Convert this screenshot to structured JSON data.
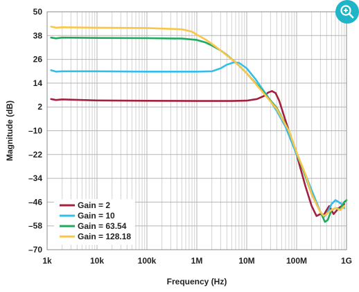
{
  "chart_data": {
    "type": "line",
    "xlabel": "Frequency (Hz)",
    "ylabel": "Magnitude (dB)",
    "xscale": "log",
    "xlim": [
      1000,
      1000000000
    ],
    "ylim": [
      -70,
      50
    ],
    "x_ticks": [
      {
        "value": 1000,
        "label": "1k"
      },
      {
        "value": 10000,
        "label": "10k"
      },
      {
        "value": 100000,
        "label": "100k"
      },
      {
        "value": 1000000,
        "label": "1M"
      },
      {
        "value": 10000000,
        "label": "10M"
      },
      {
        "value": 100000000,
        "label": "100M"
      },
      {
        "value": 1000000000,
        "label": "1G"
      }
    ],
    "y_ticks": [
      {
        "value": 50,
        "label": "50"
      },
      {
        "value": 38,
        "label": "38"
      },
      {
        "value": 26,
        "label": "26"
      },
      {
        "value": 14,
        "label": "14"
      },
      {
        "value": 2,
        "label": "2"
      },
      {
        "value": -10,
        "label": "–10"
      },
      {
        "value": -22,
        "label": "–22"
      },
      {
        "value": -34,
        "label": "–34"
      },
      {
        "value": -46,
        "label": "–46"
      },
      {
        "value": -58,
        "label": "–58"
      },
      {
        "value": -70,
        "label": "–70"
      }
    ],
    "grid": true,
    "legend_position": "bottom-left",
    "series": [
      {
        "name": "Gain = 2",
        "color": "#a3203f",
        "points": [
          [
            1200,
            6
          ],
          [
            1500,
            5.5
          ],
          [
            2000,
            5.8
          ],
          [
            5000,
            5.5
          ],
          [
            10000,
            5.3
          ],
          [
            100000,
            5.1
          ],
          [
            1000000,
            5
          ],
          [
            5000000,
            5
          ],
          [
            10000000,
            5.2
          ],
          [
            16000000,
            6
          ],
          [
            22000000,
            7.5
          ],
          [
            27000000,
            9.3
          ],
          [
            32000000,
            10
          ],
          [
            38000000,
            9
          ],
          [
            45000000,
            5
          ],
          [
            55000000,
            -2
          ],
          [
            70000000,
            -10
          ],
          [
            100000000,
            -22
          ],
          [
            150000000,
            -38
          ],
          [
            200000000,
            -48
          ],
          [
            250000000,
            -53
          ],
          [
            300000000,
            -52
          ],
          [
            350000000,
            -52.5
          ],
          [
            400000000,
            -50
          ],
          [
            450000000,
            -48
          ],
          [
            550000000,
            -52
          ],
          [
            700000000,
            -49
          ],
          [
            900000000,
            -47
          ]
        ]
      },
      {
        "name": "Gain = 10",
        "color": "#33bde8",
        "points": [
          [
            1200,
            20.5
          ],
          [
            1500,
            19.8
          ],
          [
            2000,
            20
          ],
          [
            10000,
            20
          ],
          [
            100000,
            19.8
          ],
          [
            1000000,
            19.8
          ],
          [
            2000000,
            20
          ],
          [
            3000000,
            21.5
          ],
          [
            4000000,
            23.3
          ],
          [
            5500000,
            24.5
          ],
          [
            7000000,
            24.3
          ],
          [
            10000000,
            21.5
          ],
          [
            15000000,
            16
          ],
          [
            25000000,
            8
          ],
          [
            40000000,
            0
          ],
          [
            60000000,
            -8
          ],
          [
            100000000,
            -22
          ],
          [
            150000000,
            -32
          ],
          [
            200000000,
            -40
          ],
          [
            300000000,
            -51
          ],
          [
            350000000,
            -53.5
          ],
          [
            400000000,
            -52
          ],
          [
            500000000,
            -47
          ],
          [
            600000000,
            -45
          ],
          [
            700000000,
            -46
          ],
          [
            800000000,
            -47
          ],
          [
            900000000,
            -49
          ]
        ]
      },
      {
        "name": "Gain = 63.54",
        "color": "#1faa5d",
        "points": [
          [
            1200,
            37
          ],
          [
            1500,
            36.6
          ],
          [
            2000,
            37
          ],
          [
            10000,
            36.8
          ],
          [
            100000,
            36.7
          ],
          [
            500000,
            36.5
          ],
          [
            1000000,
            35.8
          ],
          [
            1500000,
            34.5
          ],
          [
            2000000,
            33
          ],
          [
            3000000,
            30.5
          ],
          [
            4000000,
            28.2
          ],
          [
            6000000,
            24.5
          ],
          [
            10000000,
            19
          ],
          [
            20000000,
            10.5
          ],
          [
            40000000,
            1.5
          ],
          [
            70000000,
            -10
          ],
          [
            100000000,
            -21
          ],
          [
            150000000,
            -33
          ],
          [
            200000000,
            -42
          ],
          [
            300000000,
            -51
          ],
          [
            370000000,
            -56
          ],
          [
            420000000,
            -55
          ],
          [
            500000000,
            -50
          ],
          [
            600000000,
            -49
          ],
          [
            750000000,
            -49.5
          ],
          [
            900000000,
            -46
          ],
          [
            1000000000,
            -45
          ]
        ]
      },
      {
        "name": "Gain = 128.18",
        "color": "#fbc54b",
        "points": [
          [
            1200,
            42.5
          ],
          [
            1500,
            42
          ],
          [
            2000,
            42.2
          ],
          [
            10000,
            42
          ],
          [
            100000,
            41.8
          ],
          [
            500000,
            41.2
          ],
          [
            800000,
            40
          ],
          [
            1000000,
            38.5
          ],
          [
            1500000,
            36
          ],
          [
            2000000,
            33.8
          ],
          [
            3000000,
            30.5
          ],
          [
            4000000,
            28
          ],
          [
            6000000,
            24.5
          ],
          [
            10000000,
            19
          ],
          [
            20000000,
            10
          ],
          [
            40000000,
            1
          ],
          [
            70000000,
            -10
          ],
          [
            100000000,
            -21
          ],
          [
            150000000,
            -32
          ],
          [
            200000000,
            -42
          ],
          [
            300000000,
            -51
          ],
          [
            350000000,
            -53
          ],
          [
            400000000,
            -52
          ],
          [
            500000000,
            -50
          ],
          [
            600000000,
            -49
          ],
          [
            750000000,
            -50
          ],
          [
            900000000,
            -48
          ]
        ]
      }
    ]
  },
  "icons": {
    "zoom": "zoom-in-icon"
  }
}
